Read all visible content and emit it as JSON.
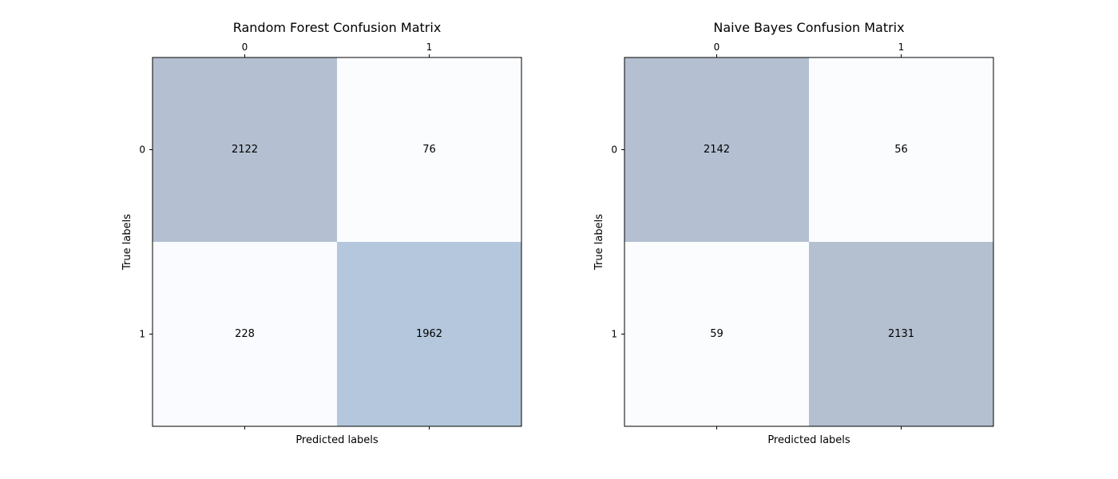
{
  "chart_data": [
    {
      "type": "heatmap",
      "title": "Random Forest Confusion Matrix",
      "xlabel": "Predicted labels",
      "ylabel": "True labels",
      "x_ticks": [
        "0",
        "1"
      ],
      "y_ticks": [
        "0",
        "1"
      ],
      "values": [
        [
          2122,
          76
        ],
        [
          228,
          1962
        ]
      ],
      "colors": [
        [
          "#b4c0d1",
          "#fbfcfe"
        ],
        [
          "#fafbfe",
          "#b4c7dc"
        ]
      ],
      "grid": false,
      "legend": "none"
    },
    {
      "type": "heatmap",
      "title": "Naive Bayes Confusion Matrix",
      "xlabel": "Predicted labels",
      "ylabel": "True labels",
      "x_ticks": [
        "0",
        "1"
      ],
      "y_ticks": [
        "0",
        "1"
      ],
      "values": [
        [
          2142,
          56
        ],
        [
          59,
          2131
        ]
      ],
      "colors": [
        [
          "#b4c0d1",
          "#fbfcfe"
        ],
        [
          "#fbfcfe",
          "#b4bfd0"
        ]
      ],
      "grid": false,
      "legend": "none"
    }
  ]
}
